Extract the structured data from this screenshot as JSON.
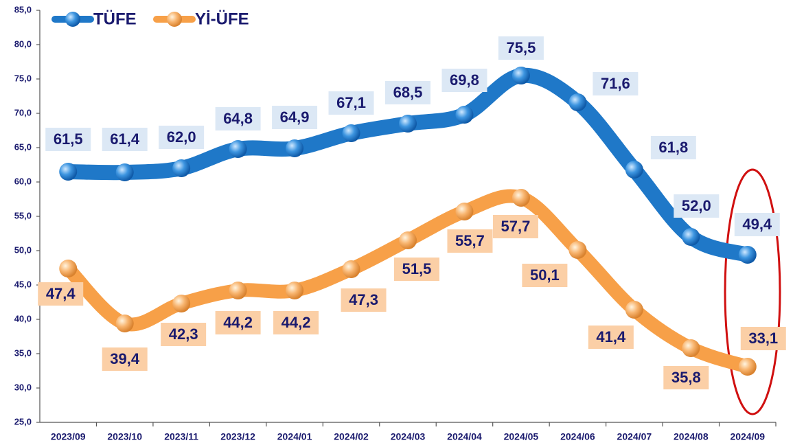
{
  "chart_data": {
    "type": "line",
    "categories": [
      "2023/09",
      "2023/10",
      "2023/11",
      "2023/12",
      "2024/01",
      "2024/02",
      "2024/03",
      "2024/04",
      "2024/05",
      "2024/06",
      "2024/07",
      "2024/08",
      "2024/09"
    ],
    "series": [
      {
        "name": "TÜFE",
        "color": "#1f78c8",
        "values": [
          61.5,
          61.4,
          62.0,
          64.8,
          64.9,
          67.1,
          68.5,
          69.8,
          75.5,
          71.6,
          61.8,
          52.0,
          49.4
        ],
        "value_labels": [
          "61,5",
          "61,4",
          "62,0",
          "64,8",
          "64,9",
          "67,1",
          "68,5",
          "69,8",
          "75,5",
          "71,6",
          "61,8",
          "52,0",
          "49,4"
        ]
      },
      {
        "name": "Yİ-ÜFE",
        "color": "#f7a048",
        "values": [
          47.4,
          39.4,
          42.3,
          44.2,
          44.2,
          47.3,
          51.5,
          55.7,
          57.7,
          50.1,
          41.4,
          35.8,
          33.1
        ],
        "value_labels": [
          "47,4",
          "39,4",
          "42,3",
          "44,2",
          "44,2",
          "47,3",
          "51,5",
          "55,7",
          "57,7",
          "50,1",
          "41,4",
          "35,8",
          "33,1"
        ]
      }
    ],
    "ylim": [
      25,
      85
    ],
    "yticks": [
      {
        "value": 25,
        "label": "25,0"
      },
      {
        "value": 30,
        "label": "30,0"
      },
      {
        "value": 35,
        "label": "35,0"
      },
      {
        "value": 40,
        "label": "40,0"
      },
      {
        "value": 45,
        "label": "45,0"
      },
      {
        "value": 50,
        "label": "50,0"
      },
      {
        "value": 55,
        "label": "55,0"
      },
      {
        "value": 60,
        "label": "60,0"
      },
      {
        "value": 65,
        "label": "65,0"
      },
      {
        "value": 70,
        "label": "70,0"
      },
      {
        "value": 75,
        "label": "75,0"
      },
      {
        "value": 80,
        "label": "80,0"
      },
      {
        "value": 85,
        "label": "85,0"
      }
    ],
    "grid": false,
    "legend": "top-left"
  }
}
